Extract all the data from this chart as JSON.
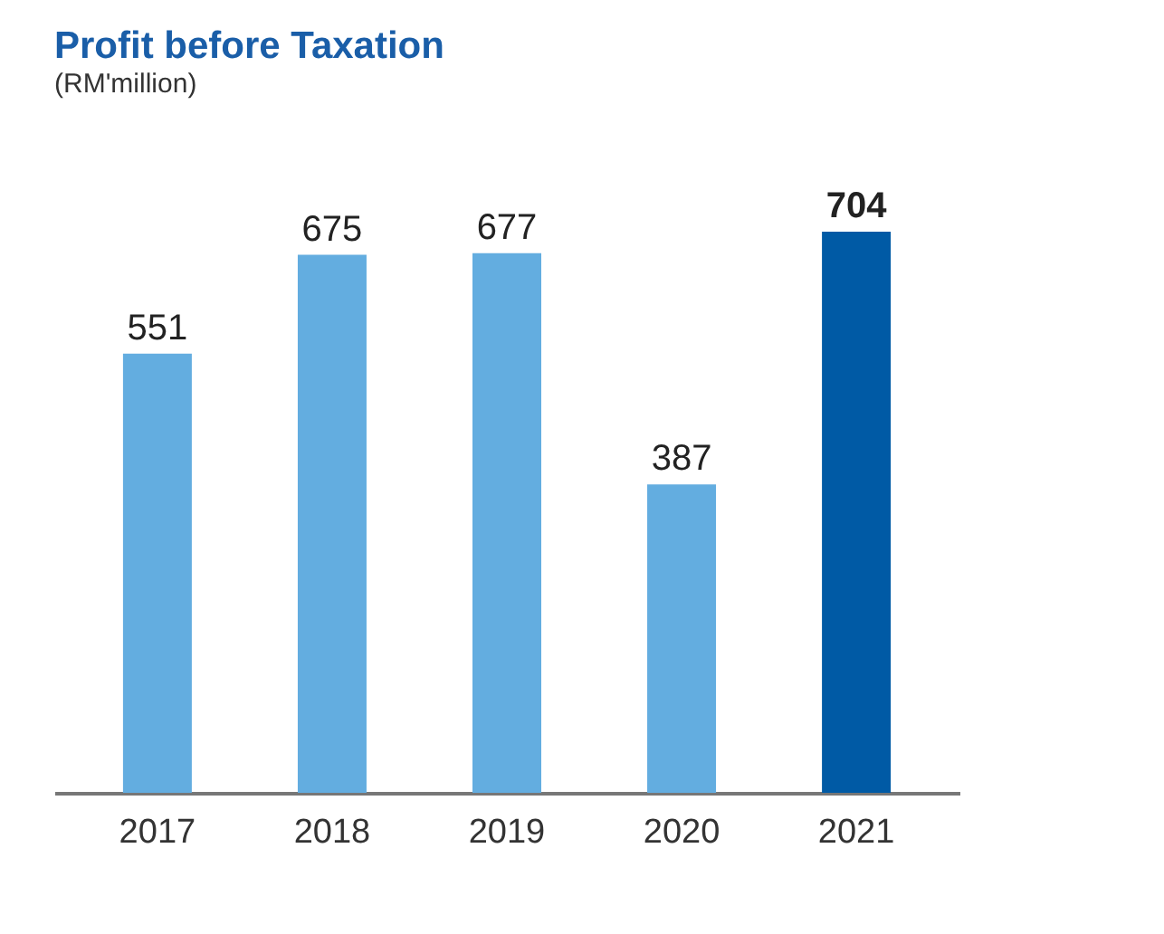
{
  "chart_data": {
    "type": "bar",
    "title": "Profit before Taxation",
    "subtitle": "(RM'million)",
    "categories": [
      "2017",
      "2018",
      "2019",
      "2020",
      "2021"
    ],
    "values": [
      551,
      675,
      677,
      387,
      704
    ],
    "colors": [
      "#63ade0",
      "#63ade0",
      "#63ade0",
      "#63ade0",
      "#005aa5"
    ],
    "value_labels": [
      "551",
      "675",
      "677",
      "387",
      "704"
    ],
    "grid": false
  }
}
